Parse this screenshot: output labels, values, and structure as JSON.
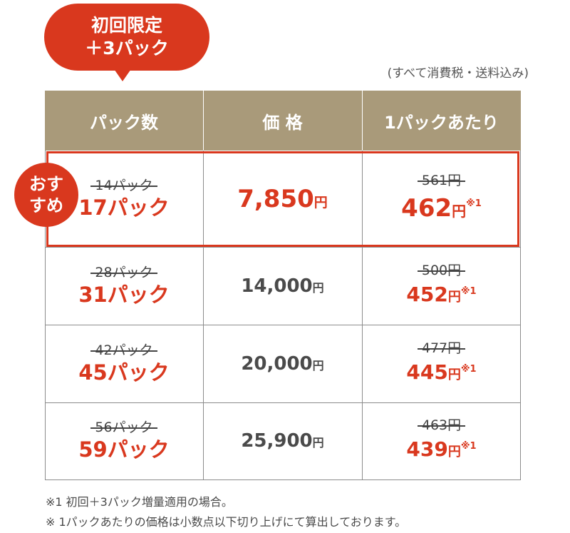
{
  "badge": {
    "line1": "初回限定",
    "line2": "＋3パック"
  },
  "tax_note": "(すべて消費税・送料込み)",
  "headers": [
    "パック数",
    "価 格",
    "1パックあたり"
  ],
  "recommend": {
    "line1": "おす",
    "line2": "すめ"
  },
  "yen": "円",
  "note_mark": "※1",
  "rows": [
    {
      "old_packs": "14パック",
      "new_packs": "17パック",
      "price": "7,850",
      "old_per": "561円",
      "new_per": "462"
    },
    {
      "old_packs": "28パック",
      "new_packs": "31パック",
      "price": "14,000",
      "old_per": "500円",
      "new_per": "452"
    },
    {
      "old_packs": "42パック",
      "new_packs": "45パック",
      "price": "20,000",
      "old_per": "477円",
      "new_per": "445"
    },
    {
      "old_packs": "56パック",
      "new_packs": "59パック",
      "price": "25,900",
      "old_per": "463円",
      "new_per": "439"
    }
  ],
  "footnotes": [
    "※1  初回＋3パック増量適用の場合。",
    "※   1パックあたりの価格は小数点以下切り上げにて算出しております。"
  ],
  "colors": {
    "accent": "#d9381e",
    "header": "#a99a7a",
    "text": "#4a4a4a"
  }
}
